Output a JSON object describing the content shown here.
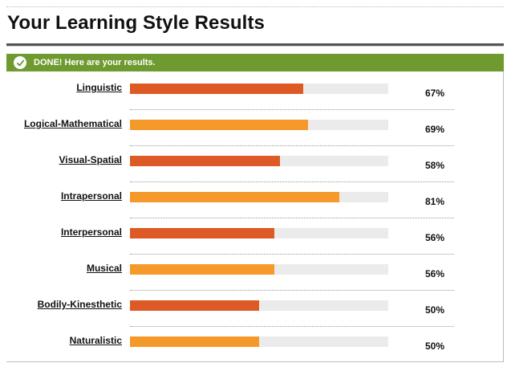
{
  "header": {
    "title": "Your Learning Style Results"
  },
  "status": {
    "text": "DONE! Here are your results.",
    "icon": "check-icon"
  },
  "colors": {
    "status_bg": "#6e9a2f",
    "bar_dark": "#dd5a26",
    "bar_light": "#f59a2a",
    "track": "#ebebeb"
  },
  "results": [
    {
      "label": "Linguistic",
      "percent_label": "67%",
      "percent": 67,
      "color": "#dd5a26"
    },
    {
      "label": "Logical-Mathematical",
      "percent_label": "69%",
      "percent": 69,
      "color": "#f59a2a"
    },
    {
      "label": "Visual-Spatial",
      "percent_label": "58%",
      "percent": 58,
      "color": "#dd5a26"
    },
    {
      "label": "Intrapersonal",
      "percent_label": "81%",
      "percent": 81,
      "color": "#f59a2a"
    },
    {
      "label": "Interpersonal",
      "percent_label": "56%",
      "percent": 56,
      "color": "#dd5a26"
    },
    {
      "label": "Musical",
      "percent_label": "56%",
      "percent": 56,
      "color": "#f59a2a"
    },
    {
      "label": "Bodily-Kinesthetic",
      "percent_label": "50%",
      "percent": 50,
      "color": "#dd5a26"
    },
    {
      "label": "Naturalistic",
      "percent_label": "50%",
      "percent": 50,
      "color": "#f59a2a"
    }
  ]
}
